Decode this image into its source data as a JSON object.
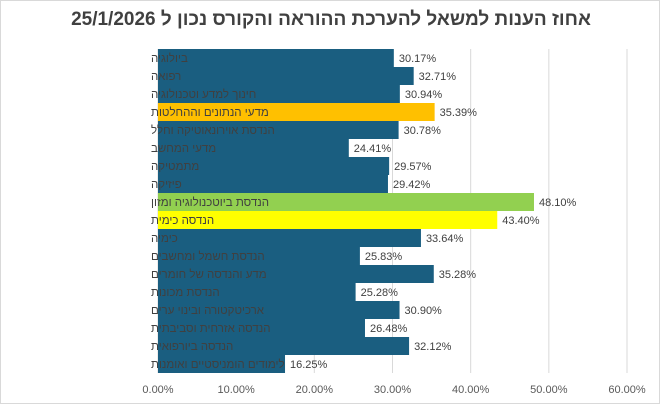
{
  "chart_data": {
    "type": "bar",
    "orientation": "horizontal",
    "title": "אחוז הענות למשאל להערכת ההוראה והקורס נכון ל 25/1/2026",
    "categories": [
      "ביולוגיה",
      "רפואה",
      "חינוך למדע וטכנולוגיה",
      "מדעי הנתונים וההחלטות",
      "הנדסת אוירונאוטיקה וחלל",
      "מדעי המחשב",
      "מתמטיקה",
      "פיזיקה",
      "הנדסת ביוטכנולוגיה ומזון",
      "הנדסה כימית",
      "כימיה",
      "הנדסת חשמל ומחשבים",
      "מדע והנדסה של חומרים",
      "הנדסת מכונות",
      "ארכיטקטורה ובינוי ערים",
      "הנדסה אזרחית וסביבתית",
      "הנדסה ביורפואית",
      "לימודים הומניסטיים ואומנות"
    ],
    "values": [
      30.17,
      32.71,
      30.94,
      35.39,
      30.78,
      24.41,
      29.57,
      29.42,
      48.1,
      43.4,
      33.64,
      25.83,
      35.28,
      25.28,
      30.9,
      26.48,
      32.12,
      16.25
    ],
    "data_labels": [
      "30.17%",
      "32.71%",
      "30.94%",
      "35.39%",
      "30.78%",
      "24.41%",
      "29.57%",
      "29.42%",
      "48.10%",
      "43.40%",
      "33.64%",
      "25.83%",
      "35.28%",
      "25.28%",
      "30.90%",
      "26.48%",
      "32.12%",
      "16.25%"
    ],
    "colors": [
      "#1a5e80",
      "#1a5e80",
      "#1a5e80",
      "#ffc000",
      "#1a5e80",
      "#1a5e80",
      "#1a5e80",
      "#1a5e80",
      "#92d050",
      "#ffff00",
      "#1a5e80",
      "#1a5e80",
      "#1a5e80",
      "#1a5e80",
      "#1a5e80",
      "#1a5e80",
      "#1a5e80",
      "#1a5e80"
    ],
    "xlim": [
      0,
      60
    ],
    "x_ticks": [
      "0.00%",
      "10.00%",
      "20.00%",
      "30.00%",
      "40.00%",
      "50.00%",
      "60.00%"
    ],
    "grid": true,
    "legend": "none"
  }
}
